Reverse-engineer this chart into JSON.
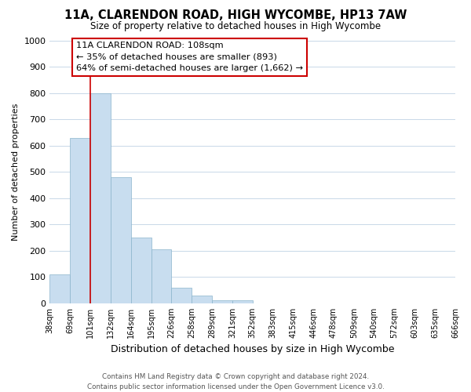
{
  "title": "11A, CLARENDON ROAD, HIGH WYCOMBE, HP13 7AW",
  "subtitle": "Size of property relative to detached houses in High Wycombe",
  "xlabel": "Distribution of detached houses by size in High Wycombe",
  "ylabel": "Number of detached properties",
  "bar_values": [
    110,
    630,
    800,
    480,
    250,
    205,
    60,
    28,
    10,
    10,
    0,
    0,
    0,
    0,
    0,
    0,
    0,
    0,
    0,
    0
  ],
  "bin_labels": [
    "38sqm",
    "69sqm",
    "101sqm",
    "132sqm",
    "164sqm",
    "195sqm",
    "226sqm",
    "258sqm",
    "289sqm",
    "321sqm",
    "352sqm",
    "383sqm",
    "415sqm",
    "446sqm",
    "478sqm",
    "509sqm",
    "540sqm",
    "572sqm",
    "603sqm",
    "635sqm",
    "666sqm"
  ],
  "bar_color": "#c8ddef",
  "bar_edge_color": "#8ab4cc",
  "red_line_color": "#cc0000",
  "annotation_line1": "11A CLARENDON ROAD: 108sqm",
  "annotation_line2": "← 35% of detached houses are smaller (893)",
  "annotation_line3": "64% of semi-detached houses are larger (1,662) →",
  "ylim": [
    0,
    1000
  ],
  "yticks": [
    0,
    100,
    200,
    300,
    400,
    500,
    600,
    700,
    800,
    900,
    1000
  ],
  "footer_line1": "Contains HM Land Registry data © Crown copyright and database right 2024.",
  "footer_line2": "Contains public sector information licensed under the Open Government Licence v3.0.",
  "bg_color": "#ffffff",
  "grid_color": "#c8d8e8",
  "num_bins": 20
}
